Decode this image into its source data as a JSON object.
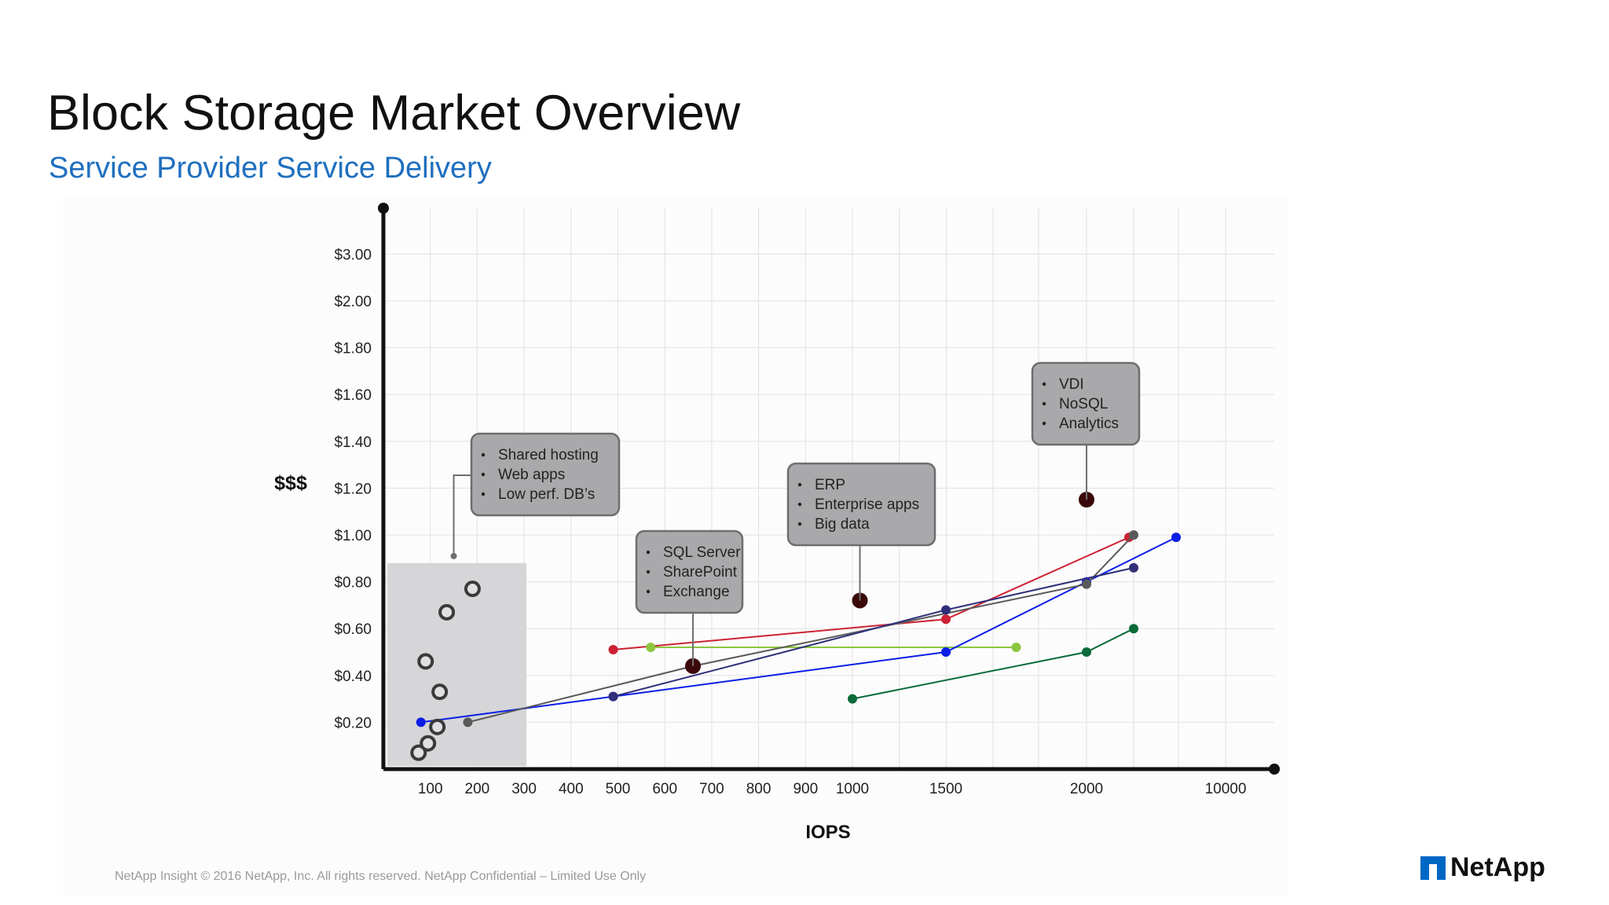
{
  "slide": {
    "title": "Block Storage Market Overview",
    "subtitle": "Service Provider Service Delivery",
    "footer": "NetApp Insight  © 2016 NetApp, Inc. All rights reserved. NetApp Confidential – Limited Use Only",
    "logo_text": "NetApp"
  },
  "colors": {
    "title": "#111111",
    "subtitle": "#1f6fbf",
    "grid": "#e2e2e2",
    "axis": "#111111",
    "callout_fill": "#a9a9ab",
    "callout_stroke": "#6e6e70",
    "workload_marker": "#3b0808",
    "highlight_area": "#d6d5d8",
    "logo": "#0067c5"
  },
  "chart_data": {
    "type": "scatter",
    "xlabel": "IOPS",
    "ylabel": "$$$",
    "x_categories": [
      "100",
      "200",
      "300",
      "400",
      "500",
      "600",
      "700",
      "800",
      "900",
      "1000",
      "1500",
      "2000",
      "10000"
    ],
    "y_categories": [
      "$0.20",
      "$0.40",
      "$0.60",
      "$0.80",
      "$1.00",
      "$1.20",
      "$1.40",
      "$1.60",
      "$1.80",
      "$2.00",
      "$3.00"
    ],
    "grid": true,
    "low_end_cluster": [
      {
        "x": 75,
        "y": 0.07
      },
      {
        "x": 95,
        "y": 0.11
      },
      {
        "x": 115,
        "y": 0.18
      },
      {
        "x": 120,
        "y": 0.33
      },
      {
        "x": 90,
        "y": 0.46
      },
      {
        "x": 135,
        "y": 0.67
      },
      {
        "x": 190,
        "y": 0.77
      }
    ],
    "workload_markers": [
      {
        "x": 660,
        "y": 0.44
      },
      {
        "x": 1040,
        "y": 0.72
      },
      {
        "x": 2000,
        "y": 1.15
      }
    ],
    "series": [
      {
        "color": "#cc2233",
        "points": [
          {
            "x": 490,
            "y": 0.51
          },
          {
            "x": 1500,
            "y": 0.64
          },
          {
            "x": 2450,
            "y": 0.99
          }
        ]
      },
      {
        "color": "#8cc63f",
        "points": [
          {
            "x": 570,
            "y": 0.52
          },
          {
            "x": 1750,
            "y": 0.52
          }
        ]
      },
      {
        "color": "#0b1ee6",
        "points": [
          {
            "x": 80,
            "y": 0.2
          },
          {
            "x": 490,
            "y": 0.31
          },
          {
            "x": 1500,
            "y": 0.5
          },
          {
            "x": 2000,
            "y": 0.8
          },
          {
            "x": 6000,
            "y": 0.99
          }
        ]
      },
      {
        "color": "#5a5a5a",
        "points": [
          {
            "x": 180,
            "y": 0.2
          },
          {
            "x": 660,
            "y": 0.44
          },
          {
            "x": 2000,
            "y": 0.79
          },
          {
            "x": 2500,
            "y": 1.0
          }
        ]
      },
      {
        "color": "#30307a",
        "points": [
          {
            "x": 490,
            "y": 0.31
          },
          {
            "x": 1500,
            "y": 0.68
          },
          {
            "x": 2500,
            "y": 0.86
          }
        ]
      },
      {
        "color": "#0b6b3a",
        "points": [
          {
            "x": 1000,
            "y": 0.3
          },
          {
            "x": 2000,
            "y": 0.5
          },
          {
            "x": 2500,
            "y": 0.6
          }
        ]
      }
    ],
    "callouts": [
      {
        "anchor_x": 150,
        "anchor_y": 0.91,
        "items": [
          "Shared hosting",
          "Web apps",
          "Low perf. DB’s"
        ]
      },
      {
        "anchor_x": 660,
        "anchor_y": 0.44,
        "items": [
          "SQL Server",
          "SharePoint",
          "Exchange"
        ]
      },
      {
        "anchor_x": 1040,
        "anchor_y": 0.72,
        "items": [
          "ERP",
          "Enterprise apps",
          "Big data"
        ]
      },
      {
        "anchor_x": 2000,
        "anchor_y": 1.15,
        "items": [
          "VDI",
          "NoSQL",
          "Analytics"
        ]
      }
    ]
  }
}
